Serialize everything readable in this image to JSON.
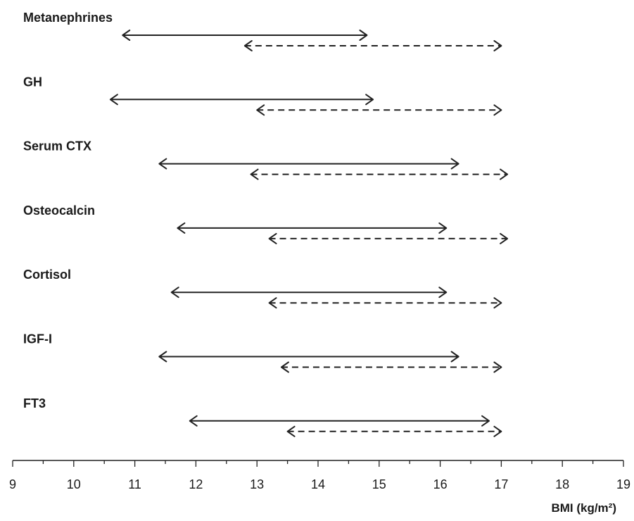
{
  "chart_data": {
    "type": "range",
    "xlabel": "BMI (kg/m²)",
    "xlim": [
      9,
      19
    ],
    "xticks": [
      9,
      10,
      11,
      12,
      13,
      14,
      15,
      16,
      17,
      18,
      19
    ],
    "grid": false,
    "rows": [
      {
        "label": "Metanephrines",
        "solid": [
          10.8,
          14.8
        ],
        "dashed": [
          12.8,
          17.0
        ]
      },
      {
        "label": "GH",
        "solid": [
          10.6,
          14.9
        ],
        "dashed": [
          13.0,
          17.0
        ]
      },
      {
        "label": "Serum CTX",
        "solid": [
          11.4,
          16.3
        ],
        "dashed": [
          12.9,
          17.1
        ]
      },
      {
        "label": "Osteocalcin",
        "solid": [
          11.7,
          16.1
        ],
        "dashed": [
          13.2,
          17.1
        ]
      },
      {
        "label": "Cortisol",
        "solid": [
          11.6,
          16.1
        ],
        "dashed": [
          13.2,
          17.0
        ]
      },
      {
        "label": "IGF-I",
        "solid": [
          11.4,
          16.3
        ],
        "dashed": [
          13.4,
          17.0
        ]
      },
      {
        "label": "FT3",
        "solid": [
          11.9,
          16.8
        ],
        "dashed": [
          13.5,
          17.0
        ]
      }
    ]
  }
}
